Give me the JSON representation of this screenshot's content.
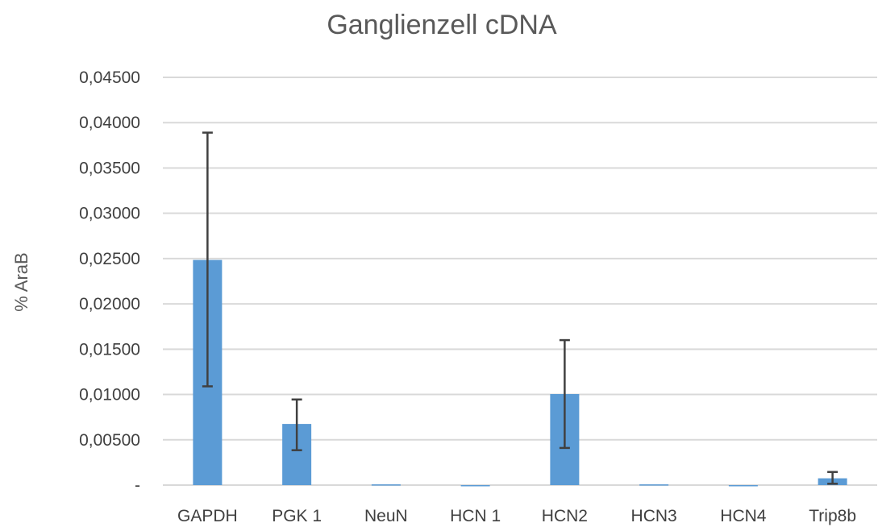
{
  "chart_data": {
    "type": "bar",
    "title": "Ganglienzell cDNA",
    "xlabel": "",
    "ylabel": "% AraB",
    "categories": [
      "GAPDH",
      "PGK 1",
      "NeuN",
      "HCN 1",
      "HCN2",
      "HCN3",
      "HCN4",
      "Trip8b"
    ],
    "values": [
      0.02485,
      0.00675,
      8e-05,
      0.0,
      0.01005,
      8e-05,
      0.0,
      0.00075
    ],
    "error_low": [
      0.01395,
      0.0029,
      0.0,
      0.0,
      0.00595,
      0.0,
      0.0,
      0.0006
    ],
    "error_high": [
      0.01405,
      0.0027,
      0.0,
      0.0,
      0.00595,
      0.0,
      0.0,
      0.0007
    ],
    "ylim": [
      0,
      0.045
    ],
    "yticks": [
      0,
      0.005,
      0.01,
      0.015,
      0.02,
      0.025,
      0.03,
      0.035,
      0.04,
      0.045
    ],
    "ytick_labels": [
      "-",
      "0,00500",
      "0,01000",
      "0,01500",
      "0,02000",
      "0,02500",
      "0,03000",
      "0,03500",
      "0,04000",
      "0,04500"
    ],
    "grid": true,
    "legend": "none",
    "colors": {
      "bar": "#5b9bd5",
      "error_bar": "#404040",
      "grid": "#d9d9d9",
      "text": "#595959"
    }
  }
}
